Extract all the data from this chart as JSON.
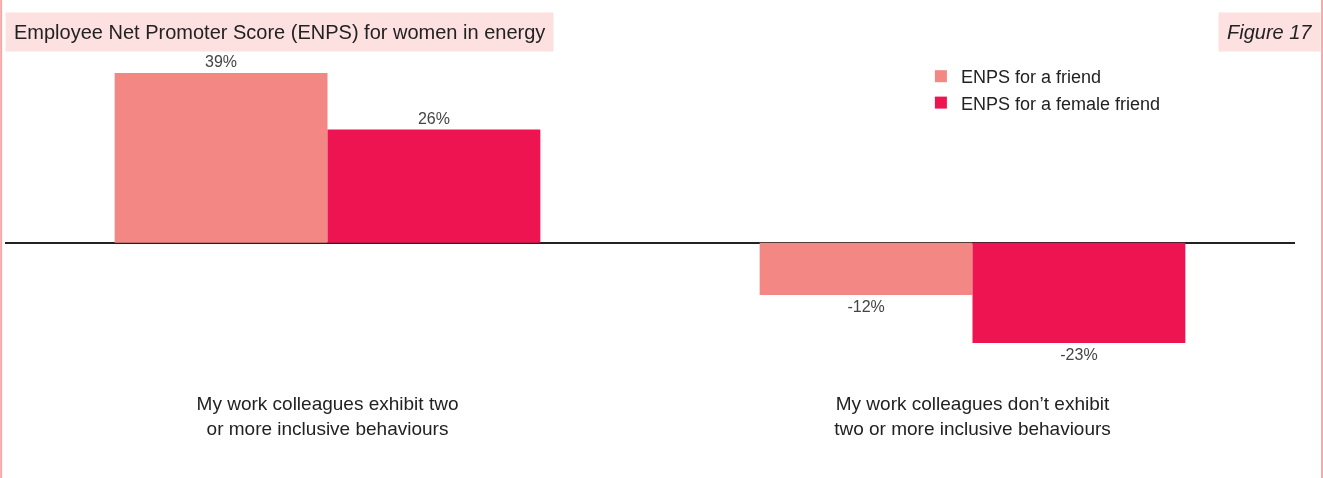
{
  "chart_data": {
    "type": "bar",
    "title": "Employee Net Promoter Score (ENPS) for women in energy",
    "annotations": [
      "Figure 17"
    ],
    "categories": [
      "My work colleagues exhibit two\nor more inclusive behaviours",
      "My work colleagues don’t exhibit\ntwo or more inclusive behaviours"
    ],
    "series": [
      {
        "name": "ENPS for a friend",
        "color": "#f28783",
        "values": [
          39,
          -12
        ],
        "value_labels": [
          "39%",
          "-12%"
        ]
      },
      {
        "name": "ENPS for a female friend",
        "color": "#ee1452",
        "values": [
          26,
          -23
        ],
        "value_labels": [
          "26%",
          "-23%"
        ]
      }
    ],
    "tick_labels": "x",
    "legend": "top right"
  }
}
